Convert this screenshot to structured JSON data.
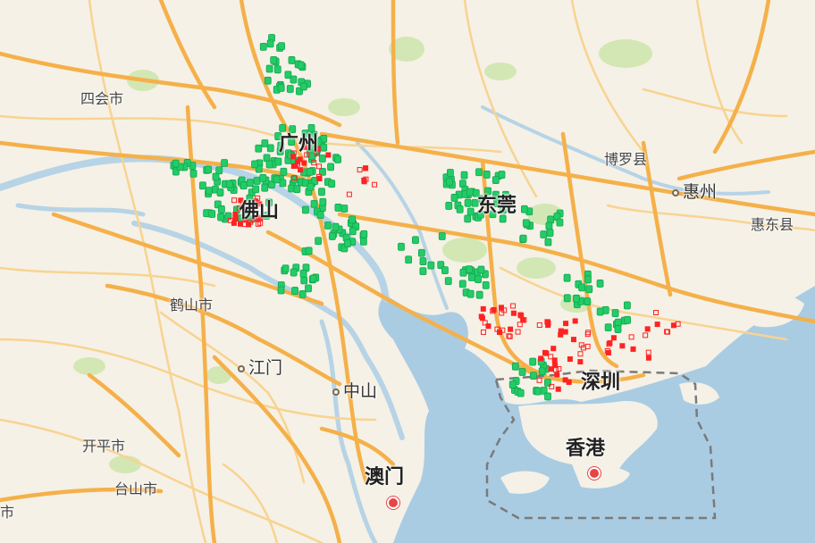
{
  "map": {
    "colors": {
      "land": "#f5f1e6",
      "water": "#a9cce3",
      "river": "#b7d3e6",
      "road_major": "#f5b04a",
      "road_minor": "#f8cf8a",
      "green": "#c9e2a6",
      "marker_green": "#22cc66",
      "marker_red": "#ff2222",
      "border": "#7a7a7a"
    },
    "labels": [
      {
        "id": "sihui",
        "text": "四会市",
        "size": "small"
      },
      {
        "id": "guangzhou",
        "text": "广州",
        "size": "big"
      },
      {
        "id": "foshan",
        "text": "佛山",
        "size": "big"
      },
      {
        "id": "dongguan",
        "text": "东莞",
        "size": "big"
      },
      {
        "id": "boluo",
        "text": "博罗县",
        "size": "small"
      },
      {
        "id": "huizhou",
        "text": "惠州",
        "size": "mid",
        "marker": true
      },
      {
        "id": "huidong",
        "text": "惠东县",
        "size": "small"
      },
      {
        "id": "heshan",
        "text": "鹤山市",
        "size": "small"
      },
      {
        "id": "jiangmen",
        "text": "江门",
        "size": "mid",
        "marker": true
      },
      {
        "id": "zhongshan",
        "text": "中山",
        "size": "mid",
        "marker": true
      },
      {
        "id": "shenzhen",
        "text": "深圳",
        "size": "big"
      },
      {
        "id": "kaiping",
        "text": "开平市",
        "size": "small"
      },
      {
        "id": "taishan",
        "text": "台山市",
        "size": "small"
      },
      {
        "id": "macau",
        "text": "澳门",
        "size": "big"
      },
      {
        "id": "hongkong",
        "text": "香港",
        "size": "big"
      },
      {
        "id": "edge",
        "text": "市",
        "size": "small"
      }
    ]
  }
}
